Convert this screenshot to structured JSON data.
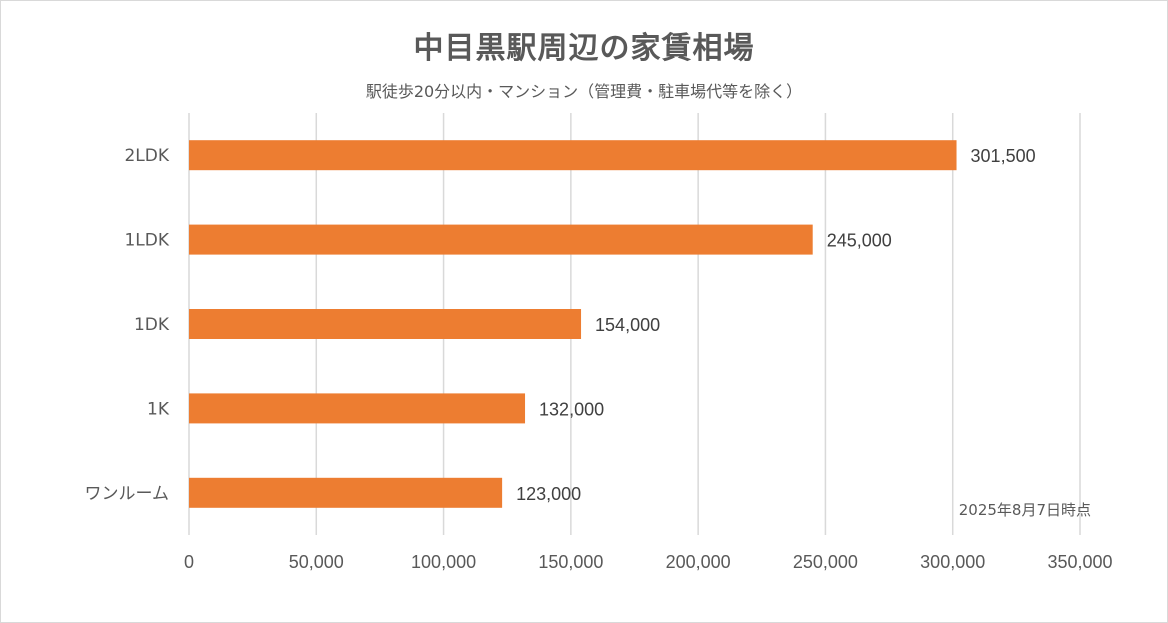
{
  "chart_data": {
    "type": "bar",
    "orientation": "horizontal",
    "title": "中目黒駅周辺の家賃相場",
    "subtitle": "駅徒歩20分以内・マンション（管理費・駐車場代等を除く）",
    "categories": [
      "2LDK",
      "1LDK",
      "1DK",
      "1K",
      "ワンルーム"
    ],
    "values": [
      301500,
      245000,
      154000,
      132000,
      123000
    ],
    "data_labels": [
      "301,500",
      "245,000",
      "154,000",
      "132,000",
      "123,000"
    ],
    "xlim": [
      0,
      350000
    ],
    "x_ticks": [
      0,
      50000,
      100000,
      150000,
      200000,
      250000,
      300000,
      350000
    ],
    "x_tick_labels": [
      "0",
      "50,000",
      "100,000",
      "150,000",
      "200,000",
      "250,000",
      "300,000",
      "350,000"
    ],
    "grid": true,
    "bar_color": "#ED7D31",
    "grid_color": "#d9d9d9",
    "annotation": "2025年8月7日時点"
  }
}
